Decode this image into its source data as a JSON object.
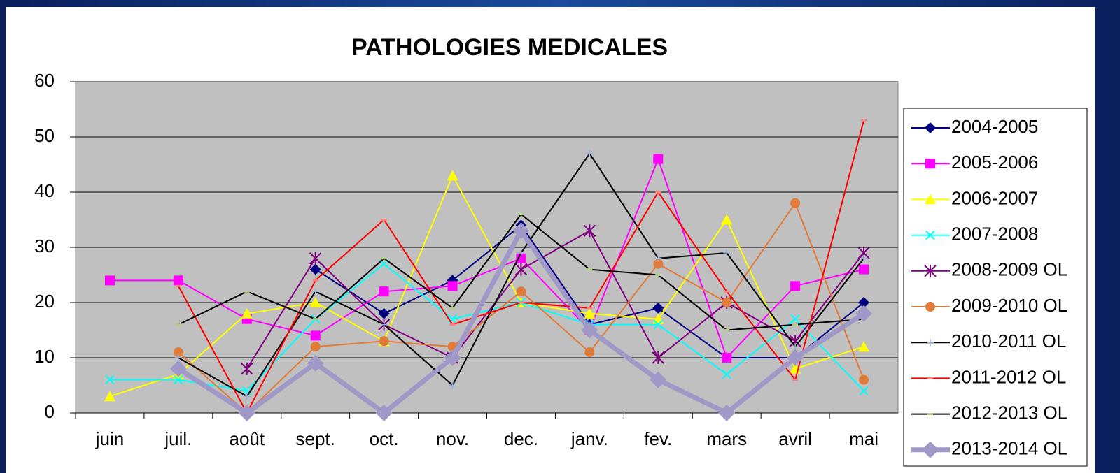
{
  "chart_data": {
    "type": "line",
    "title": "PATHOLOGIES MEDICALES",
    "categories": [
      "juin",
      "juil.",
      "août",
      "sept.",
      "oct.",
      "nov.",
      "dec.",
      "janv.",
      "fev.",
      "mars",
      "avril",
      "mai"
    ],
    "ylim": [
      0,
      60
    ],
    "yticks": [
      0,
      10,
      20,
      30,
      40,
      50,
      60
    ],
    "grid": true,
    "legend": "right",
    "series": [
      {
        "name": "2004-2005",
        "color": "#000080",
        "marker": "diamond",
        "marker_color": "#000080",
        "values": [
          null,
          null,
          null,
          26,
          18,
          24,
          34,
          16,
          19,
          10,
          10,
          20
        ]
      },
      {
        "name": "2005-2006",
        "color": "#ff00ff",
        "marker": "square",
        "marker_color": "#ff00ff",
        "values": [
          24,
          24,
          17,
          14,
          22,
          23,
          28,
          15,
          46,
          10,
          23,
          26
        ]
      },
      {
        "name": "2006-2007",
        "color": "#ffff00",
        "marker": "triangle",
        "marker_color": "#ffff00",
        "values": [
          3,
          7,
          18,
          20,
          13,
          43,
          20,
          18,
          17,
          35,
          8,
          12
        ]
      },
      {
        "name": "2007-2008",
        "color": "#00ffff",
        "marker": "x",
        "marker_color": "#00ffff",
        "values": [
          6,
          6,
          4,
          17,
          27,
          17,
          20,
          16,
          16,
          7,
          17,
          4
        ]
      },
      {
        "name": "2008-2009 OL",
        "color": "#800080",
        "marker": "star",
        "marker_color": "#800080",
        "values": [
          null,
          null,
          8,
          28,
          16,
          10,
          26,
          33,
          10,
          20,
          13,
          29
        ]
      },
      {
        "name": "2009-2010 OL",
        "color": "#e07b39",
        "marker": "circle",
        "marker_color": "#e07b39",
        "values": [
          null,
          11,
          0,
          12,
          13,
          12,
          22,
          11,
          27,
          20,
          38,
          6
        ]
      },
      {
        "name": "2010-2011 OL",
        "color": "#000000",
        "marker": "plus",
        "marker_color": "#9ab0d8",
        "values": [
          null,
          10,
          3,
          22,
          16,
          5,
          29,
          47,
          28,
          29,
          12,
          28
        ]
      },
      {
        "name": "2011-2012 OL",
        "color": "#ff0000",
        "marker": "dash",
        "marker_color": "#ff8080",
        "values": [
          null,
          23,
          0,
          24,
          35,
          16,
          20,
          19,
          40,
          22,
          6,
          53
        ]
      },
      {
        "name": "2012-2013 OL",
        "color": "#000000",
        "marker": "dash",
        "marker_color": "#b0d080",
        "values": [
          null,
          16,
          22,
          17,
          28,
          19,
          36,
          26,
          25,
          15,
          16,
          17
        ]
      },
      {
        "name": "2013-2014 OL",
        "color": "#a099c8",
        "marker": "diamond",
        "marker_color": "#a099c8",
        "emphasis": true,
        "values": [
          null,
          8,
          0,
          9,
          0,
          10,
          33,
          15,
          6,
          0,
          10,
          18
        ]
      }
    ]
  }
}
